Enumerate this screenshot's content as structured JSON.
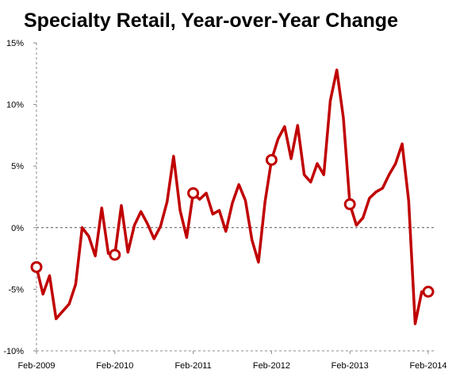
{
  "colors": {
    "line": "#c00000",
    "marker_fill": "#ffffff",
    "axis": "#888888",
    "zero_line": "#555555"
  },
  "chart_data": {
    "type": "line",
    "title": "Specialty Retail, Year-over-Year Change",
    "xlabel": "",
    "ylabel": "",
    "x_ticks": [
      "Feb-2009",
      "Feb-2010",
      "Feb-2011",
      "Feb-2012",
      "Feb-2013",
      "Feb-2014"
    ],
    "y_ticks": [
      "15%",
      "10%",
      "5%",
      "0%",
      "-5%",
      "-10%"
    ],
    "ylim": [
      -10,
      15
    ],
    "grid": false,
    "reference_line": 0,
    "highlighted_months": [
      "Feb-2009",
      "Feb-2010",
      "Feb-2011",
      "Feb-2012",
      "Feb-2013",
      "Feb-2014"
    ],
    "series": [
      {
        "months": [
          "Feb-2009",
          "Mar-2009",
          "Apr-2009",
          "May-2009",
          "Jun-2009",
          "Jul-2009",
          "Aug-2009",
          "Sep-2009",
          "Oct-2009",
          "Nov-2009",
          "Dec-2009",
          "Jan-2010",
          "Feb-2010",
          "Mar-2010",
          "Apr-2010",
          "May-2010",
          "Jun-2010",
          "Jul-2010",
          "Aug-2010",
          "Sep-2010",
          "Oct-2010",
          "Nov-2010",
          "Dec-2010",
          "Jan-2011",
          "Feb-2011",
          "Mar-2011",
          "Apr-2011",
          "May-2011",
          "Jun-2011",
          "Jul-2011",
          "Aug-2011",
          "Sep-2011",
          "Oct-2011",
          "Nov-2011",
          "Dec-2011",
          "Jan-2012",
          "Feb-2012",
          "Mar-2012",
          "Apr-2012",
          "May-2012",
          "Jun-2012",
          "Jul-2012",
          "Aug-2012",
          "Sep-2012",
          "Oct-2012",
          "Nov-2012",
          "Dec-2012",
          "Jan-2013",
          "Feb-2013",
          "Mar-2013",
          "Apr-2013",
          "May-2013",
          "Jun-2013",
          "Jul-2013",
          "Aug-2013",
          "Sep-2013",
          "Oct-2013",
          "Nov-2013",
          "Dec-2013",
          "Jan-2014",
          "Feb-2014"
        ],
        "values": [
          -3.2,
          -5.4,
          -3.9,
          -7.4,
          -6.8,
          -6.2,
          -4.6,
          0.0,
          -0.7,
          -2.3,
          1.6,
          -2.1,
          -2.2,
          1.8,
          -2.0,
          0.2,
          1.3,
          0.3,
          -0.9,
          0.1,
          2.1,
          5.8,
          1.4,
          -0.8,
          2.8,
          2.3,
          2.8,
          1.1,
          1.4,
          -0.3,
          2.0,
          3.5,
          2.2,
          -1.0,
          -2.8,
          2.1,
          5.5,
          7.2,
          8.2,
          5.6,
          8.3,
          4.3,
          3.7,
          5.2,
          4.3,
          10.3,
          12.8,
          8.9,
          1.9,
          0.2,
          0.8,
          2.4,
          2.9,
          3.2,
          4.3,
          5.2,
          6.8,
          2.2,
          -7.8,
          -5.2,
          -5.2
        ]
      }
    ]
  }
}
